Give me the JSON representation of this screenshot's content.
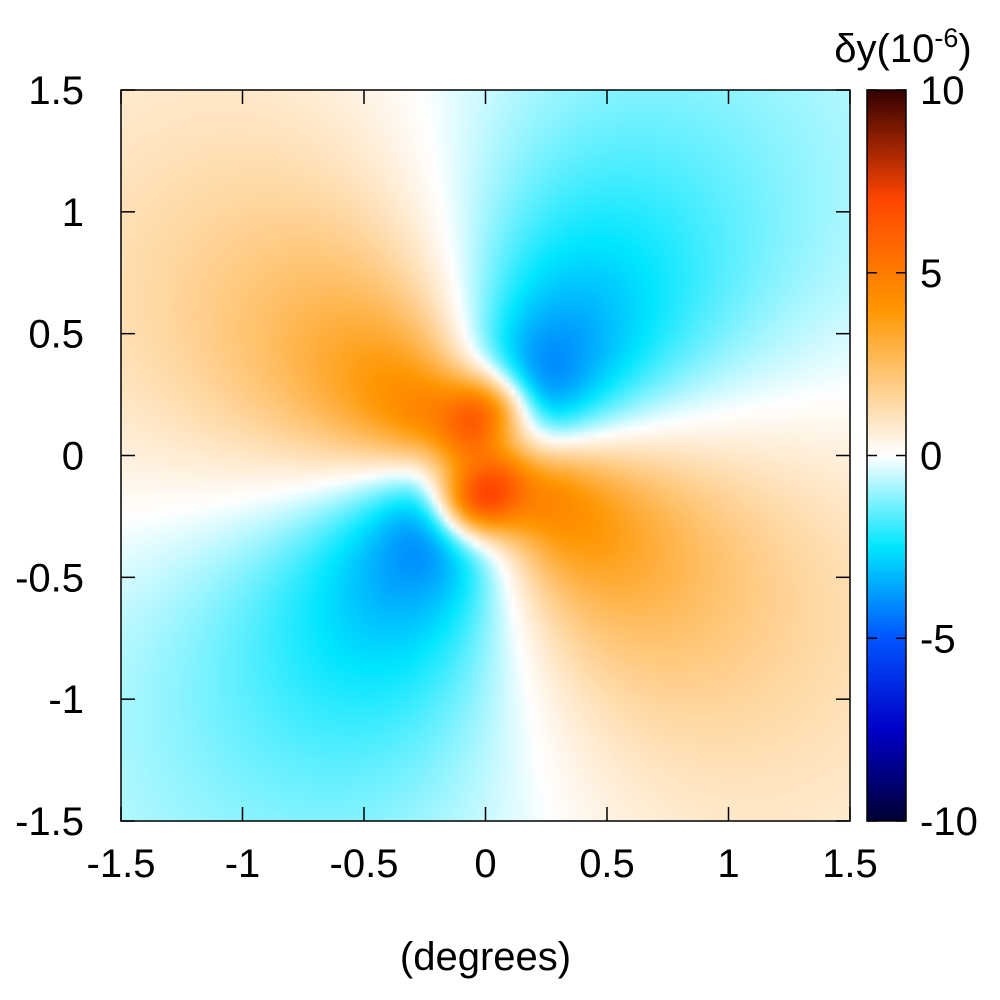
{
  "chart_data": {
    "type": "heatmap",
    "title": "",
    "xlabel": "(degrees)",
    "ylabel": "",
    "xlim": [
      -1.5,
      1.5
    ],
    "ylim": [
      -1.5,
      1.5
    ],
    "x_ticks": [
      -1.5,
      -1,
      -0.5,
      0,
      0.5,
      1,
      1.5
    ],
    "x_tick_labels": [
      "-1.5",
      "-1",
      "-0.5",
      "0",
      "0.5",
      "1",
      "1.5"
    ],
    "y_ticks": [
      -1.5,
      -1,
      -0.5,
      0,
      0.5,
      1,
      1.5
    ],
    "y_tick_labels": [
      "-1.5",
      "-1",
      "-0.5",
      "0",
      "0.5",
      "1",
      "1.5"
    ],
    "grid": false,
    "colorbar": {
      "title_base": "δy(10",
      "title_exp": "-6",
      "title_close": ")",
      "range": [
        -10,
        10
      ],
      "ticks": [
        10,
        5,
        0,
        -5,
        -10
      ],
      "tick_labels": [
        "10",
        "5",
        "0",
        "-5",
        "-10"
      ],
      "placement": "right",
      "colormap": [
        {
          "v": -10,
          "color": "#000033"
        },
        {
          "v": -7.5,
          "color": "#0000c8"
        },
        {
          "v": -5,
          "color": "#0055ff"
        },
        {
          "v": -2.5,
          "color": "#00e6ff"
        },
        {
          "v": 0,
          "color": "#ffffff"
        },
        {
          "v": 1.5,
          "color": "#ffd7a0"
        },
        {
          "v": 4,
          "color": "#ff9600"
        },
        {
          "v": 7,
          "color": "#ff4600"
        },
        {
          "v": 10,
          "color": "#330000"
        }
      ]
    },
    "field": {
      "description_units": "1e-6",
      "components": [
        {
          "kind": "quadrupole",
          "amplitude": -4.5,
          "center": [
            0,
            0
          ],
          "angle_deg": 55,
          "core_deg": 0.18,
          "falloff_deg": 0.25
        },
        {
          "kind": "peak",
          "value": 8.5,
          "center": [
            -0.05,
            -0.17
          ],
          "width_deg": 0.12
        },
        {
          "kind": "peak",
          "value": 6.5,
          "center": [
            0.03,
            0.17
          ],
          "width_deg": 0.12
        }
      ]
    }
  }
}
